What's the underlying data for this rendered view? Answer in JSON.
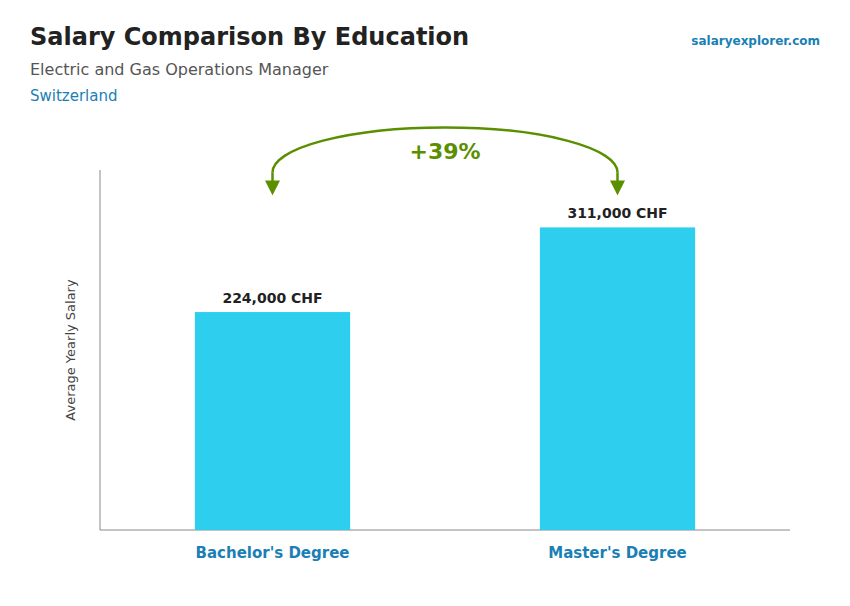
{
  "chart_data": {
    "type": "bar",
    "title": "Salary Comparison By Education",
    "subtitle": "Electric and Gas Operations Manager",
    "annotations": [
      "Switzerland",
      "salaryexplorer.com",
      "+39%"
    ],
    "ylabel": "Average Yearly Salary",
    "categories": [
      "Bachelor's Degree",
      "Master's Degree"
    ],
    "values": [
      224000,
      311000
    ],
    "value_labels": [
      "224,000 CHF",
      "311,000 CHF"
    ],
    "data_labels": true,
    "color": "#2ECFEE",
    "ylim": [
      0,
      370000
    ],
    "tick_labels": "x",
    "grid": false
  }
}
